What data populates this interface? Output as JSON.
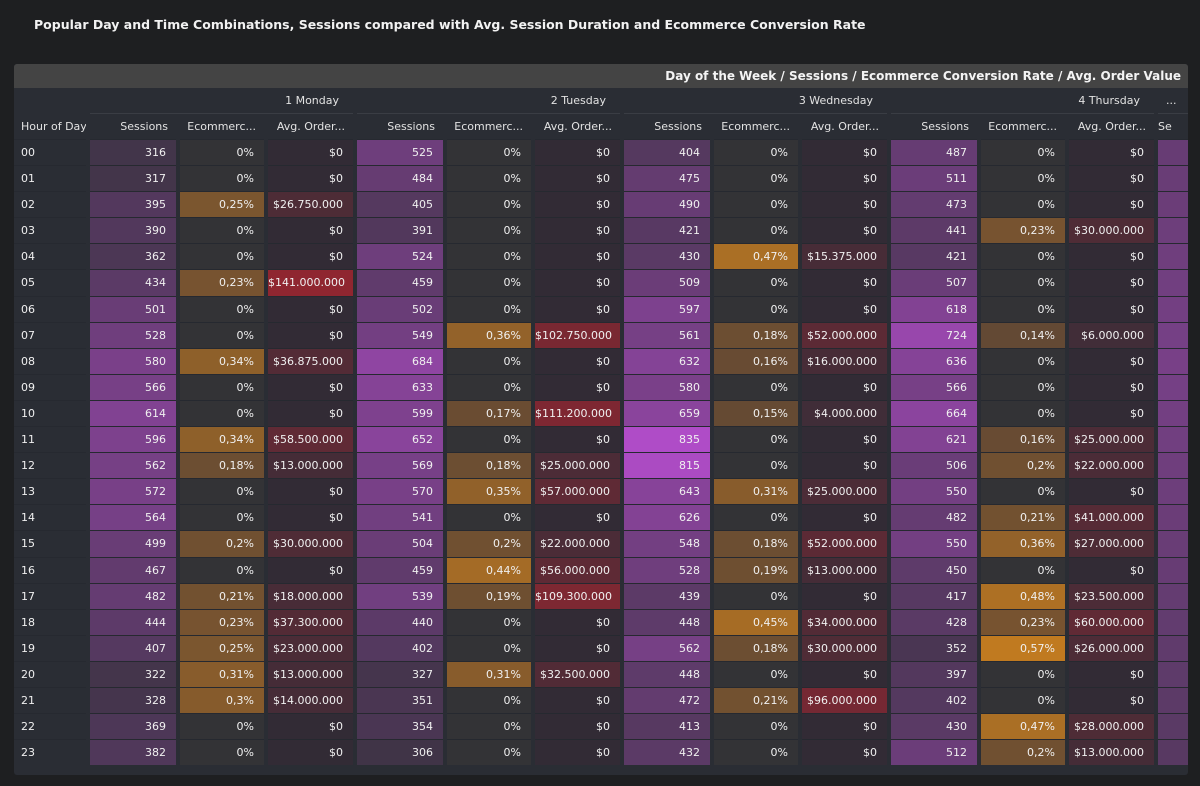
{
  "title": "Popular Day and Time Combinations, Sessions compared with Avg. Session Duration and Ecommerce Conversion Rate",
  "chart_data": {
    "type": "table",
    "header": "Day of the Week / Sessions / Ecommerce Conversion Rate / Avg. Order Value",
    "row_header": "Hour of Day",
    "days": [
      "1 Monday",
      "2 Tuesday",
      "3 Wednesday",
      "4 Thursday",
      "..."
    ],
    "metrics": [
      "Sessions",
      "Ecommerc...",
      "Avg. Order..."
    ],
    "partial_metric": "Se",
    "colors": {
      "sessions": "#b04cc8",
      "conversion": "#c07a20",
      "order_value": "#8f2630",
      "empty": "#333336"
    },
    "rows": [
      [
        "00",
        "316",
        "0%",
        "$0",
        "525",
        "0%",
        "$0",
        "404",
        "0%",
        "$0",
        "487",
        "0%",
        "$0"
      ],
      [
        "01",
        "317",
        "0%",
        "$0",
        "484",
        "0%",
        "$0",
        "475",
        "0%",
        "$0",
        "511",
        "0%",
        "$0"
      ],
      [
        "02",
        "395",
        "0,25%",
        "$26.750.000",
        "405",
        "0%",
        "$0",
        "490",
        "0%",
        "$0",
        "473",
        "0%",
        "$0"
      ],
      [
        "03",
        "390",
        "0%",
        "$0",
        "391",
        "0%",
        "$0",
        "421",
        "0%",
        "$0",
        "441",
        "0,23%",
        "$30.000.000"
      ],
      [
        "04",
        "362",
        "0%",
        "$0",
        "524",
        "0%",
        "$0",
        "430",
        "0,47%",
        "$15.375.000",
        "421",
        "0%",
        "$0"
      ],
      [
        "05",
        "434",
        "0,23%",
        "$141.000.000",
        "459",
        "0%",
        "$0",
        "509",
        "0%",
        "$0",
        "507",
        "0%",
        "$0"
      ],
      [
        "06",
        "501",
        "0%",
        "$0",
        "502",
        "0%",
        "$0",
        "597",
        "0%",
        "$0",
        "618",
        "0%",
        "$0"
      ],
      [
        "07",
        "528",
        "0%",
        "$0",
        "549",
        "0,36%",
        "$102.750.000",
        "561",
        "0,18%",
        "$52.000.000",
        "724",
        "0,14%",
        "$6.000.000"
      ],
      [
        "08",
        "580",
        "0,34%",
        "$36.875.000",
        "684",
        "0%",
        "$0",
        "632",
        "0,16%",
        "$16.000.000",
        "636",
        "0%",
        "$0"
      ],
      [
        "09",
        "566",
        "0%",
        "$0",
        "633",
        "0%",
        "$0",
        "580",
        "0%",
        "$0",
        "566",
        "0%",
        "$0"
      ],
      [
        "10",
        "614",
        "0%",
        "$0",
        "599",
        "0,17%",
        "$111.200.000",
        "659",
        "0,15%",
        "$4.000.000",
        "664",
        "0%",
        "$0"
      ],
      [
        "11",
        "596",
        "0,34%",
        "$58.500.000",
        "652",
        "0%",
        "$0",
        "835",
        "0%",
        "$0",
        "621",
        "0,16%",
        "$25.000.000"
      ],
      [
        "12",
        "562",
        "0,18%",
        "$13.000.000",
        "569",
        "0,18%",
        "$25.000.000",
        "815",
        "0%",
        "$0",
        "506",
        "0,2%",
        "$22.000.000"
      ],
      [
        "13",
        "572",
        "0%",
        "$0",
        "570",
        "0,35%",
        "$57.000.000",
        "643",
        "0,31%",
        "$25.000.000",
        "550",
        "0%",
        "$0"
      ],
      [
        "14",
        "564",
        "0%",
        "$0",
        "541",
        "0%",
        "$0",
        "626",
        "0%",
        "$0",
        "482",
        "0,21%",
        "$41.000.000"
      ],
      [
        "15",
        "499",
        "0,2%",
        "$30.000.000",
        "504",
        "0,2%",
        "$22.000.000",
        "548",
        "0,18%",
        "$52.000.000",
        "550",
        "0,36%",
        "$27.000.000"
      ],
      [
        "16",
        "467",
        "0%",
        "$0",
        "459",
        "0,44%",
        "$56.000.000",
        "528",
        "0,19%",
        "$13.000.000",
        "450",
        "0%",
        "$0"
      ],
      [
        "17",
        "482",
        "0,21%",
        "$18.000.000",
        "539",
        "0,19%",
        "$109.300.000",
        "439",
        "0%",
        "$0",
        "417",
        "0,48%",
        "$23.500.000"
      ],
      [
        "18",
        "444",
        "0,23%",
        "$37.300.000",
        "440",
        "0%",
        "$0",
        "448",
        "0,45%",
        "$34.000.000",
        "428",
        "0,23%",
        "$60.000.000"
      ],
      [
        "19",
        "407",
        "0,25%",
        "$23.000.000",
        "402",
        "0%",
        "$0",
        "562",
        "0,18%",
        "$30.000.000",
        "352",
        "0,57%",
        "$26.000.000"
      ],
      [
        "20",
        "322",
        "0,31%",
        "$13.000.000",
        "327",
        "0,31%",
        "$32.500.000",
        "448",
        "0%",
        "$0",
        "397",
        "0%",
        "$0"
      ],
      [
        "21",
        "328",
        "0,3%",
        "$14.000.000",
        "351",
        "0%",
        "$0",
        "472",
        "0,21%",
        "$96.000.000",
        "402",
        "0%",
        "$0"
      ],
      [
        "22",
        "369",
        "0%",
        "$0",
        "354",
        "0%",
        "$0",
        "413",
        "0%",
        "$0",
        "430",
        "0,47%",
        "$28.000.000"
      ],
      [
        "23",
        "382",
        "0%",
        "$0",
        "306",
        "0%",
        "$0",
        "432",
        "0%",
        "$0",
        "512",
        "0,2%",
        "$13.000.000"
      ]
    ]
  }
}
